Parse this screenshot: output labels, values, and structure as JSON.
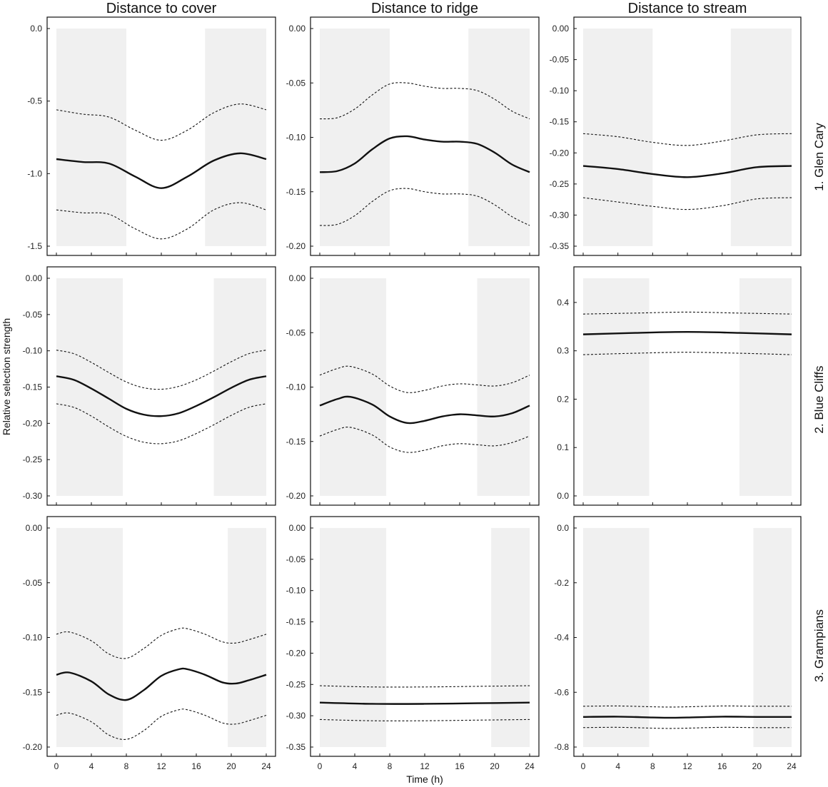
{
  "figure": {
    "column_titles": [
      "Distance to cover",
      "Distance to ridge",
      "Distance to stream"
    ],
    "row_titles": [
      "1. Glen Cary",
      "2. Blue Cliffs",
      "3. Grampians"
    ],
    "ylabel": "Relative selection strength",
    "xlabel": "Time (h)"
  },
  "chart_data": [
    {
      "type": "line",
      "row": 0,
      "col": 0,
      "x_ticks": [
        0,
        4,
        8,
        12,
        16,
        20,
        24
      ],
      "xlim": [
        0,
        24
      ],
      "ylim": [
        -1.5,
        0.0
      ],
      "y_ticks": [
        0.0,
        -0.5,
        -1.0,
        -1.5
      ],
      "y_tick_labels": [
        "0.0",
        "-0.5",
        "-1.0",
        "-1.5"
      ],
      "night": [
        [
          0,
          8
        ],
        [
          17,
          24
        ]
      ],
      "series": [
        {
          "role": "fit",
          "x": [
            0,
            3,
            6,
            9,
            12,
            15,
            18,
            21,
            24
          ],
          "y": [
            -0.9,
            -0.92,
            -0.93,
            -1.02,
            -1.1,
            -1.02,
            -0.91,
            -0.86,
            -0.9
          ]
        },
        {
          "role": "upper",
          "x": [
            0,
            3,
            6,
            9,
            12,
            15,
            18,
            21,
            24
          ],
          "y": [
            -0.56,
            -0.59,
            -0.61,
            -0.7,
            -0.77,
            -0.7,
            -0.58,
            -0.52,
            -0.56
          ]
        },
        {
          "role": "lower",
          "x": [
            0,
            3,
            6,
            9,
            12,
            15,
            18,
            21,
            24
          ],
          "y": [
            -1.25,
            -1.27,
            -1.28,
            -1.38,
            -1.45,
            -1.38,
            -1.25,
            -1.2,
            -1.25
          ]
        }
      ]
    },
    {
      "type": "line",
      "row": 0,
      "col": 1,
      "x_ticks": [
        0,
        4,
        8,
        12,
        16,
        20,
        24
      ],
      "xlim": [
        0,
        24
      ],
      "ylim": [
        -0.2,
        0.0
      ],
      "y_ticks": [
        0.0,
        -0.05,
        -0.1,
        -0.15,
        -0.2
      ],
      "y_tick_labels": [
        "0.00",
        "-0.05",
        "-0.10",
        "-0.15",
        "-0.20"
      ],
      "night": [
        [
          0,
          8
        ],
        [
          17,
          24
        ]
      ],
      "series": [
        {
          "role": "fit",
          "x": [
            0,
            2,
            4,
            6,
            8,
            10,
            12,
            14,
            16,
            18,
            20,
            22,
            24
          ],
          "y": [
            -0.132,
            -0.131,
            -0.124,
            -0.111,
            -0.101,
            -0.099,
            -0.102,
            -0.104,
            -0.104,
            -0.106,
            -0.114,
            -0.125,
            -0.132
          ]
        },
        {
          "role": "upper",
          "x": [
            0,
            2,
            4,
            6,
            8,
            10,
            12,
            14,
            16,
            18,
            20,
            22,
            24
          ],
          "y": [
            -0.083,
            -0.082,
            -0.074,
            -0.061,
            -0.051,
            -0.05,
            -0.053,
            -0.055,
            -0.055,
            -0.057,
            -0.065,
            -0.076,
            -0.083
          ]
        },
        {
          "role": "lower",
          "x": [
            0,
            2,
            4,
            6,
            8,
            10,
            12,
            14,
            16,
            18,
            20,
            22,
            24
          ],
          "y": [
            -0.181,
            -0.18,
            -0.172,
            -0.159,
            -0.149,
            -0.147,
            -0.15,
            -0.152,
            -0.152,
            -0.154,
            -0.162,
            -0.173,
            -0.181
          ]
        }
      ]
    },
    {
      "type": "line",
      "row": 0,
      "col": 2,
      "x_ticks": [
        0,
        4,
        8,
        12,
        16,
        20,
        24
      ],
      "xlim": [
        0,
        24
      ],
      "ylim": [
        -0.35,
        0.0
      ],
      "y_ticks": [
        0.0,
        -0.05,
        -0.1,
        -0.15,
        -0.2,
        -0.25,
        -0.3,
        -0.35
      ],
      "y_tick_labels": [
        "0.00",
        "-0.05",
        "-0.10",
        "-0.15",
        "-0.20",
        "-0.25",
        "-0.30",
        "-0.35"
      ],
      "night": [
        [
          0,
          8
        ],
        [
          17,
          24
        ]
      ],
      "series": [
        {
          "role": "fit",
          "x": [
            0,
            4,
            8,
            12,
            16,
            20,
            24
          ],
          "y": [
            -0.221,
            -0.226,
            -0.234,
            -0.239,
            -0.233,
            -0.223,
            -0.221
          ]
        },
        {
          "role": "upper",
          "x": [
            0,
            4,
            8,
            12,
            16,
            20,
            24
          ],
          "y": [
            -0.169,
            -0.174,
            -0.183,
            -0.188,
            -0.181,
            -0.171,
            -0.169
          ]
        },
        {
          "role": "lower",
          "x": [
            0,
            4,
            8,
            12,
            16,
            20,
            24
          ],
          "y": [
            -0.272,
            -0.279,
            -0.286,
            -0.291,
            -0.285,
            -0.274,
            -0.272
          ]
        }
      ]
    },
    {
      "type": "line",
      "row": 1,
      "col": 0,
      "x_ticks": [
        0,
        4,
        8,
        12,
        16,
        20,
        24
      ],
      "xlim": [
        0,
        24
      ],
      "ylim": [
        -0.3,
        0.0
      ],
      "y_ticks": [
        0.0,
        -0.05,
        -0.1,
        -0.15,
        -0.2,
        -0.25,
        -0.3
      ],
      "y_tick_labels": [
        "0.00",
        "-0.05",
        "-0.10",
        "-0.15",
        "-0.20",
        "-0.25",
        "-0.30"
      ],
      "night": [
        [
          0,
          7.6
        ],
        [
          18,
          24
        ]
      ],
      "series": [
        {
          "role": "fit",
          "x": [
            0,
            2,
            4,
            6,
            8,
            10,
            12,
            14,
            16,
            18,
            20,
            22,
            24
          ],
          "y": [
            -0.135,
            -0.14,
            -0.152,
            -0.166,
            -0.18,
            -0.188,
            -0.19,
            -0.186,
            -0.176,
            -0.164,
            -0.151,
            -0.14,
            -0.135
          ]
        },
        {
          "role": "upper",
          "x": [
            0,
            2,
            4,
            6,
            8,
            10,
            12,
            14,
            16,
            18,
            20,
            22,
            24
          ],
          "y": [
            -0.099,
            -0.104,
            -0.116,
            -0.13,
            -0.143,
            -0.151,
            -0.153,
            -0.149,
            -0.14,
            -0.128,
            -0.115,
            -0.104,
            -0.099
          ]
        },
        {
          "role": "lower",
          "x": [
            0,
            2,
            4,
            6,
            8,
            10,
            12,
            14,
            16,
            18,
            20,
            22,
            24
          ],
          "y": [
            -0.173,
            -0.178,
            -0.19,
            -0.205,
            -0.218,
            -0.226,
            -0.228,
            -0.224,
            -0.214,
            -0.202,
            -0.189,
            -0.178,
            -0.173
          ]
        }
      ]
    },
    {
      "type": "line",
      "row": 1,
      "col": 1,
      "x_ticks": [
        0,
        4,
        8,
        12,
        16,
        20,
        24
      ],
      "xlim": [
        0,
        24
      ],
      "ylim": [
        -0.2,
        0.0
      ],
      "y_ticks": [
        0.0,
        -0.05,
        -0.1,
        -0.15,
        -0.2
      ],
      "y_tick_labels": [
        "0.00",
        "-0.05",
        "-0.10",
        "-0.15",
        "-0.20"
      ],
      "night": [
        [
          0,
          7.6
        ],
        [
          18,
          24
        ]
      ],
      "series": [
        {
          "role": "fit",
          "x": [
            0,
            2,
            3.5,
            6,
            8,
            10,
            12,
            14,
            16,
            18,
            20,
            22,
            24
          ],
          "y": [
            -0.117,
            -0.111,
            -0.109,
            -0.116,
            -0.127,
            -0.133,
            -0.131,
            -0.127,
            -0.125,
            -0.126,
            -0.127,
            -0.124,
            -0.117
          ]
        },
        {
          "role": "upper",
          "x": [
            0,
            2,
            3.5,
            6,
            8,
            10,
            12,
            14,
            16,
            18,
            20,
            22,
            24
          ],
          "y": [
            -0.089,
            -0.083,
            -0.081,
            -0.088,
            -0.099,
            -0.105,
            -0.103,
            -0.099,
            -0.097,
            -0.098,
            -0.099,
            -0.096,
            -0.089
          ]
        },
        {
          "role": "lower",
          "x": [
            0,
            2,
            3.5,
            6,
            8,
            10,
            12,
            14,
            16,
            18,
            20,
            22,
            24
          ],
          "y": [
            -0.145,
            -0.139,
            -0.137,
            -0.144,
            -0.155,
            -0.16,
            -0.158,
            -0.154,
            -0.152,
            -0.153,
            -0.154,
            -0.151,
            -0.145
          ]
        }
      ]
    },
    {
      "type": "line",
      "row": 1,
      "col": 2,
      "x_ticks": [
        0,
        4,
        8,
        12,
        16,
        20,
        24
      ],
      "xlim": [
        0,
        24
      ],
      "ylim": [
        0.0,
        0.45
      ],
      "y_ticks": [
        0.0,
        0.1,
        0.2,
        0.3,
        0.4
      ],
      "y_tick_labels": [
        "0.0",
        "0.1",
        "0.2",
        "0.3",
        "0.4"
      ],
      "night": [
        [
          0,
          7.6
        ],
        [
          18,
          24
        ]
      ],
      "series": [
        {
          "role": "fit",
          "x": [
            0,
            6,
            12,
            18,
            24
          ],
          "y": [
            0.334,
            0.337,
            0.339,
            0.337,
            0.334
          ]
        },
        {
          "role": "upper",
          "x": [
            0,
            6,
            12,
            18,
            24
          ],
          "y": [
            0.376,
            0.378,
            0.38,
            0.378,
            0.376
          ]
        },
        {
          "role": "lower",
          "x": [
            0,
            6,
            12,
            18,
            24
          ],
          "y": [
            0.292,
            0.295,
            0.297,
            0.295,
            0.292
          ]
        }
      ]
    },
    {
      "type": "line",
      "row": 2,
      "col": 0,
      "x_ticks": [
        0,
        4,
        8,
        12,
        16,
        20,
        24
      ],
      "xlim": [
        0,
        24
      ],
      "ylim": [
        -0.2,
        0.0
      ],
      "y_ticks": [
        0.0,
        -0.05,
        -0.1,
        -0.15,
        -0.2
      ],
      "y_tick_labels": [
        "0.00",
        "-0.05",
        "-0.10",
        "-0.15",
        "-0.20"
      ],
      "night": [
        [
          0,
          7.6
        ],
        [
          19.6,
          24
        ]
      ],
      "series": [
        {
          "role": "fit",
          "x": [
            0,
            1.5,
            4,
            6,
            8,
            10,
            12,
            14,
            15,
            17,
            19,
            20.5,
            22,
            24
          ],
          "y": [
            -0.134,
            -0.132,
            -0.14,
            -0.152,
            -0.157,
            -0.148,
            -0.135,
            -0.129,
            -0.129,
            -0.134,
            -0.141,
            -0.142,
            -0.139,
            -0.134
          ]
        },
        {
          "role": "upper",
          "x": [
            0,
            1.5,
            4,
            6,
            8,
            10,
            12,
            14,
            15,
            17,
            19,
            20.5,
            22,
            24
          ],
          "y": [
            -0.097,
            -0.095,
            -0.103,
            -0.115,
            -0.119,
            -0.11,
            -0.098,
            -0.092,
            -0.092,
            -0.097,
            -0.104,
            -0.105,
            -0.102,
            -0.097
          ]
        },
        {
          "role": "lower",
          "x": [
            0,
            1.5,
            4,
            6,
            8,
            10,
            12,
            14,
            15,
            17,
            19,
            20.5,
            22,
            24
          ],
          "y": [
            -0.171,
            -0.169,
            -0.177,
            -0.189,
            -0.193,
            -0.185,
            -0.172,
            -0.166,
            -0.166,
            -0.171,
            -0.178,
            -0.179,
            -0.176,
            -0.171
          ]
        }
      ]
    },
    {
      "type": "line",
      "row": 2,
      "col": 1,
      "x_ticks": [
        0,
        4,
        8,
        12,
        16,
        20,
        24
      ],
      "xlim": [
        0,
        24
      ],
      "ylim": [
        -0.35,
        0.0
      ],
      "y_ticks": [
        0.0,
        -0.05,
        -0.1,
        -0.15,
        -0.2,
        -0.25,
        -0.3,
        -0.35
      ],
      "y_tick_labels": [
        "0.00",
        "-0.05",
        "-0.10",
        "-0.15",
        "-0.20",
        "-0.25",
        "-0.30",
        "-0.35"
      ],
      "night": [
        [
          0,
          7.6
        ],
        [
          19.6,
          24
        ]
      ],
      "series": [
        {
          "role": "fit",
          "x": [
            0,
            6,
            12,
            18,
            24
          ],
          "y": [
            -0.279,
            -0.281,
            -0.281,
            -0.28,
            -0.279
          ]
        },
        {
          "role": "upper",
          "x": [
            0,
            6,
            12,
            18,
            24
          ],
          "y": [
            -0.252,
            -0.254,
            -0.254,
            -0.253,
            -0.252
          ]
        },
        {
          "role": "lower",
          "x": [
            0,
            6,
            12,
            18,
            24
          ],
          "y": [
            -0.306,
            -0.308,
            -0.308,
            -0.307,
            -0.306
          ]
        }
      ]
    },
    {
      "type": "line",
      "row": 2,
      "col": 2,
      "x_ticks": [
        0,
        4,
        8,
        12,
        16,
        20,
        24
      ],
      "xlim": [
        0,
        24
      ],
      "ylim": [
        -0.8,
        0.0
      ],
      "y_ticks": [
        0.0,
        -0.2,
        -0.4,
        -0.6,
        -0.8
      ],
      "y_tick_labels": [
        "0.0",
        "-0.2",
        "-0.4",
        "-0.6",
        "-0.8"
      ],
      "night": [
        [
          0,
          7.6
        ],
        [
          19.6,
          24
        ]
      ],
      "series": [
        {
          "role": "fit",
          "x": [
            0,
            4,
            8,
            10,
            12,
            16,
            20,
            24
          ],
          "y": [
            -0.69,
            -0.689,
            -0.692,
            -0.693,
            -0.692,
            -0.689,
            -0.69,
            -0.69
          ]
        },
        {
          "role": "upper",
          "x": [
            0,
            4,
            8,
            10,
            12,
            16,
            20,
            24
          ],
          "y": [
            -0.651,
            -0.65,
            -0.653,
            -0.654,
            -0.653,
            -0.65,
            -0.651,
            -0.651
          ]
        },
        {
          "role": "lower",
          "x": [
            0,
            4,
            8,
            10,
            12,
            16,
            20,
            24
          ],
          "y": [
            -0.729,
            -0.728,
            -0.731,
            -0.732,
            -0.731,
            -0.728,
            -0.729,
            -0.729
          ]
        }
      ]
    }
  ]
}
